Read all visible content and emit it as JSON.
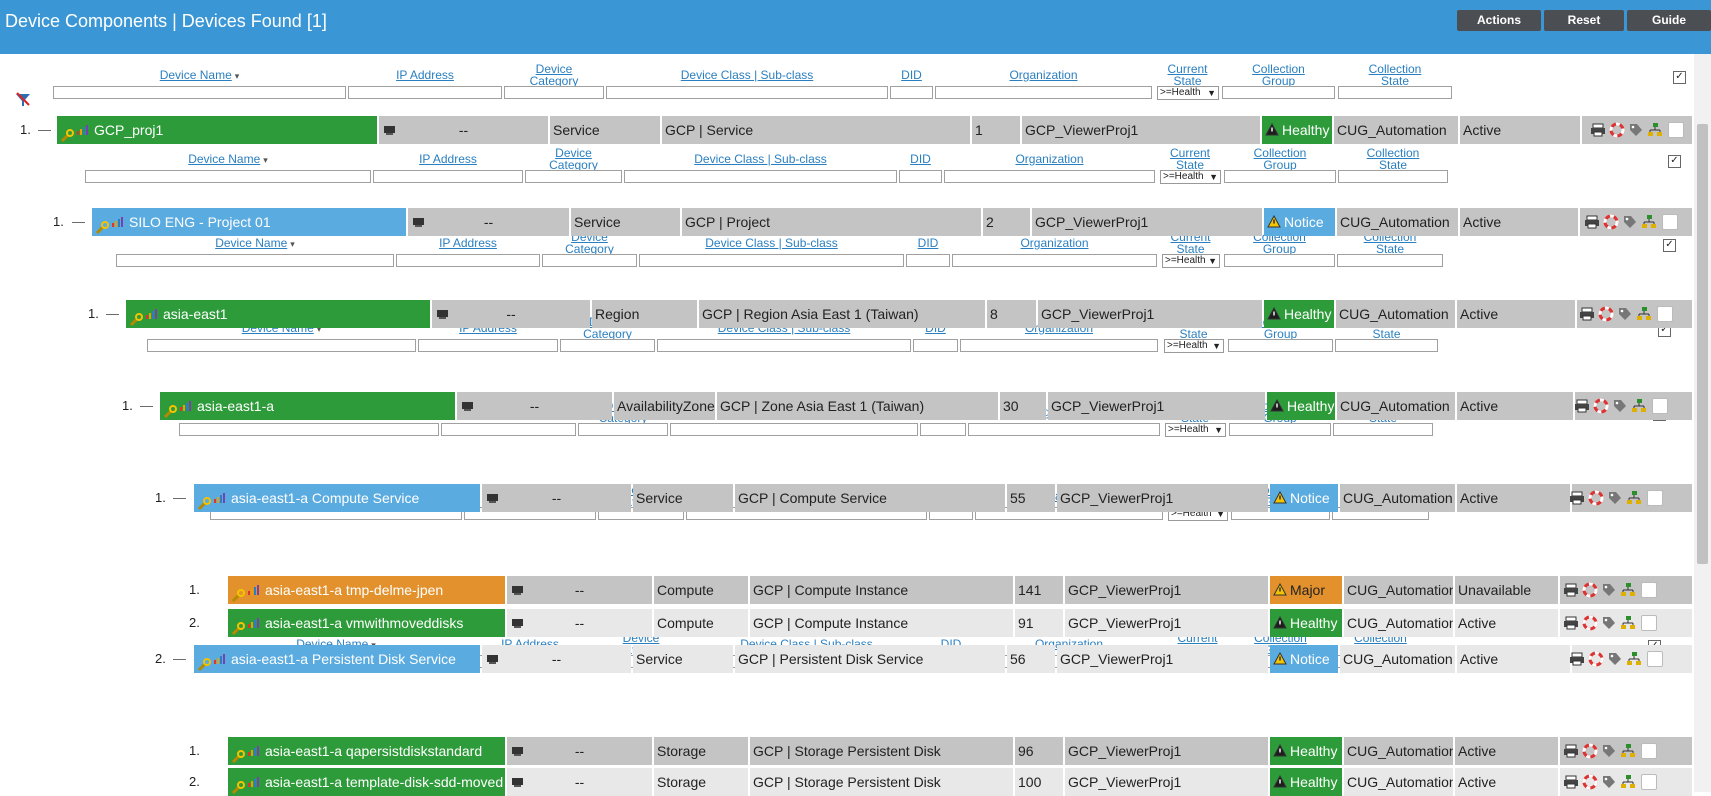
{
  "page": {
    "title": "Device Components | Devices Found [1]",
    "buttons": {
      "actions": "Actions",
      "reset": "Reset",
      "guide": "Guide"
    }
  },
  "headers": {
    "device_name": "Device Name",
    "ip_address": "IP Address",
    "device_category_1": "Device",
    "device_category_2": "Category",
    "device_class": "Device Class | Sub-class",
    "did": "DID",
    "organization": "Organization",
    "current_state_1": "Current",
    "current_state_2": "State",
    "collection_group_1": "Collection",
    "collection_group_2": "Group",
    "collection_state_1": "Collection",
    "collection_state_2": "State",
    "state_filter": ">=Health",
    "sort_arrow": "▾",
    "select_arrow": "▼",
    "checkmark": "✓"
  },
  "rows": [
    {
      "num": "1.",
      "dash": "—",
      "name": "GCP_proj1",
      "ip": "--",
      "category": "Service",
      "class": "GCP | Service",
      "did": "1",
      "org": "GCP_ViewerProj1",
      "state": "Healthy",
      "group": "CUG_Automation",
      "cstate": "Active"
    },
    {
      "num": "1.",
      "dash": "—",
      "name": "SILO ENG - Project 01",
      "ip": "--",
      "category": "Service",
      "class": "GCP | Project",
      "did": "2",
      "org": "GCP_ViewerProj1",
      "state": "Notice",
      "group": "CUG_Automation",
      "cstate": "Active"
    },
    {
      "num": "1.",
      "dash": "—",
      "name": "asia-east1",
      "ip": "--",
      "category": "Region",
      "class": "GCP | Region Asia East 1 (Taiwan)",
      "did": "8",
      "org": "GCP_ViewerProj1",
      "state": "Healthy",
      "group": "CUG_Automation",
      "cstate": "Active"
    },
    {
      "num": "1.",
      "dash": "—",
      "name": "asia-east1-a",
      "ip": "--",
      "category": "AvailabilityZone",
      "class": "GCP | Zone Asia East 1 (Taiwan)",
      "did": "30",
      "org": "GCP_ViewerProj1",
      "state": "Healthy",
      "group": "CUG_Automation",
      "cstate": "Active"
    },
    {
      "num": "1.",
      "dash": "—",
      "name": "asia-east1-a Compute Service",
      "ip": "--",
      "category": "Service",
      "class": "GCP | Compute Service",
      "did": "55",
      "org": "GCP_ViewerProj1",
      "state": "Notice",
      "group": "CUG_Automation",
      "cstate": "Active"
    },
    {
      "num": "1.",
      "dash": "",
      "name": "asia-east1-a tmp-delme-jpen",
      "ip": "--",
      "category": "Compute",
      "class": "GCP | Compute Instance",
      "did": "141",
      "org": "GCP_ViewerProj1",
      "state": "Major",
      "group": "CUG_Automation",
      "cstate": "Unavailable"
    },
    {
      "num": "2.",
      "dash": "",
      "name": "asia-east1-a vmwithmoveddisks",
      "ip": "--",
      "category": "Compute",
      "class": "GCP | Compute Instance",
      "did": "91",
      "org": "GCP_ViewerProj1",
      "state": "Healthy",
      "group": "CUG_Automation",
      "cstate": "Active"
    },
    {
      "num": "2.",
      "dash": "—",
      "name": "asia-east1-a Persistent Disk Service",
      "ip": "--",
      "category": "Service",
      "class": "GCP | Persistent Disk Service",
      "did": "56",
      "org": "GCP_ViewerProj1",
      "state": "Notice",
      "group": "CUG_Automation",
      "cstate": "Active"
    },
    {
      "num": "1.",
      "dash": "",
      "name": "asia-east1-a qapersistdiskstandard",
      "ip": "--",
      "category": "Storage",
      "class": "GCP | Storage Persistent Disk",
      "did": "96",
      "org": "GCP_ViewerProj1",
      "state": "Healthy",
      "group": "CUG_Automation",
      "cstate": "Active"
    },
    {
      "num": "2.",
      "dash": "",
      "name": "asia-east1-a template-disk-sdd-moved",
      "ip": "--",
      "category": "Storage",
      "class": "GCP | Storage Persistent Disk",
      "did": "100",
      "org": "GCP_ViewerProj1",
      "state": "Healthy",
      "group": "CUG_Automation",
      "cstate": "Active"
    }
  ],
  "colors": {
    "healthy": "#2e9b3a",
    "notice": "#5aabe0",
    "major": "#e2912c",
    "row_bg": "#c4c4c4",
    "row_alt_bg": "#e8e8e8",
    "link": "#2a7fc0",
    "header_bar": "#3a96d4"
  },
  "icons": {
    "wrench": "wrench-icon",
    "bars": "signal-bars-icon",
    "gear": "gear-icon",
    "printer": "printer-icon",
    "lifebuoy": "lifebuoy-icon",
    "tag": "tag-icon",
    "tree": "tree-icon",
    "warning": "warning-icon"
  }
}
